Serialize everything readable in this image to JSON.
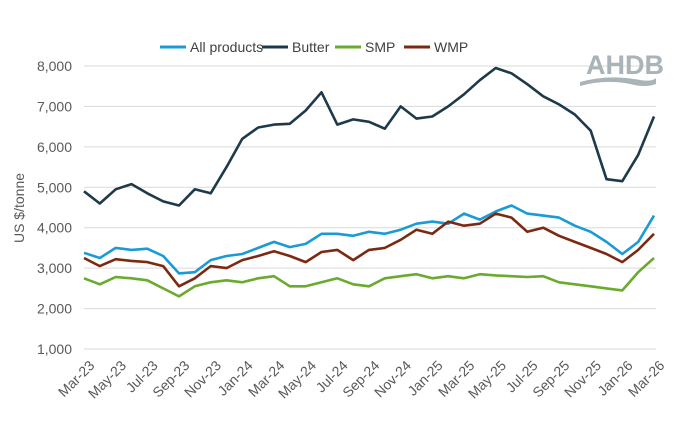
{
  "chart_data": {
    "type": "line",
    "title": "",
    "xlabel": "",
    "ylabel": "US $/tonne",
    "ylim": [
      1000,
      8000
    ],
    "yticks": [
      "1,000",
      "2,000",
      "3,000",
      "4,000",
      "5,000",
      "6,000",
      "7,000",
      "8,000"
    ],
    "ytick_values": [
      1000,
      2000,
      3000,
      4000,
      5000,
      6000,
      7000,
      8000
    ],
    "grid": "horizontal",
    "legend": "top",
    "x": [
      "Mar-23",
      "Apr-23",
      "May-23",
      "Jun-23",
      "Jul-23",
      "Aug-23",
      "Sep-23",
      "Oct-23",
      "Nov-23",
      "Dec-23",
      "Jan-24",
      "Feb-24",
      "Mar-24",
      "Apr-24",
      "May-24",
      "Jun-24",
      "Jul-24",
      "Aug-24",
      "Sep-24",
      "Oct-24",
      "Nov-24",
      "Dec-24",
      "Jan-25",
      "Feb-25",
      "Mar-25",
      "Apr-25",
      "May-25",
      "Jun-25",
      "Jul-25",
      "Aug-25",
      "Sep-25",
      "Oct-25",
      "Nov-25",
      "Dec-25",
      "Jan-26",
      "Feb-26",
      "Mar-26"
    ],
    "xticks": [
      "Mar-23",
      "May-23",
      "Jul-23",
      "Sep-23",
      "Nov-23",
      "Jan-24",
      "Mar-24",
      "May-24",
      "Jul-24",
      "Sep-24",
      "Nov-24",
      "Jan-25",
      "Mar-25",
      "May-25",
      "Jul-25",
      "Sep-25",
      "Nov-25",
      "Jan-26",
      "Mar-26"
    ],
    "series": [
      {
        "name": "All products",
        "color": "#1a9ad6",
        "values": [
          3380,
          3250,
          3500,
          3450,
          3480,
          3300,
          2870,
          2900,
          3200,
          3300,
          3350,
          3500,
          3650,
          3520,
          3600,
          3850,
          3850,
          3800,
          3900,
          3850,
          3950,
          4100,
          4150,
          4100,
          4350,
          4200,
          4400,
          4550,
          4350,
          4300,
          4250,
          4050,
          3900,
          3650,
          3350,
          3650,
          4300
        ]
      },
      {
        "name": "Butter",
        "color": "#1e3a4a",
        "values": [
          4900,
          4600,
          4950,
          5080,
          4850,
          4650,
          4550,
          4950,
          4850,
          5500,
          6200,
          6480,
          6550,
          6570,
          6900,
          7350,
          6550,
          6680,
          6620,
          6450,
          7000,
          6700,
          6750,
          7000,
          7300,
          7650,
          7950,
          7820,
          7550,
          7250,
          7050,
          6800,
          6400,
          5200,
          5150,
          5800,
          6750
        ]
      },
      {
        "name": "SMP",
        "color": "#6aaa2e",
        "values": [
          2750,
          2600,
          2780,
          2750,
          2700,
          2500,
          2300,
          2550,
          2650,
          2700,
          2650,
          2750,
          2800,
          2550,
          2550,
          2650,
          2750,
          2600,
          2550,
          2750,
          2800,
          2850,
          2750,
          2800,
          2750,
          2850,
          2820,
          2800,
          2780,
          2800,
          2650,
          2600,
          2550,
          2500,
          2450,
          2900,
          3250
        ]
      },
      {
        "name": "WMP",
        "color": "#7b2a12",
        "values": [
          3250,
          3050,
          3220,
          3180,
          3150,
          3050,
          2550,
          2750,
          3050,
          3000,
          3200,
          3300,
          3420,
          3300,
          3150,
          3400,
          3450,
          3200,
          3450,
          3500,
          3700,
          3950,
          3850,
          4150,
          4050,
          4100,
          4350,
          4250,
          3900,
          4000,
          3800,
          3650,
          3500,
          3350,
          3150,
          3450,
          3850
        ]
      }
    ]
  },
  "logo": {
    "text": "AHDB"
  }
}
